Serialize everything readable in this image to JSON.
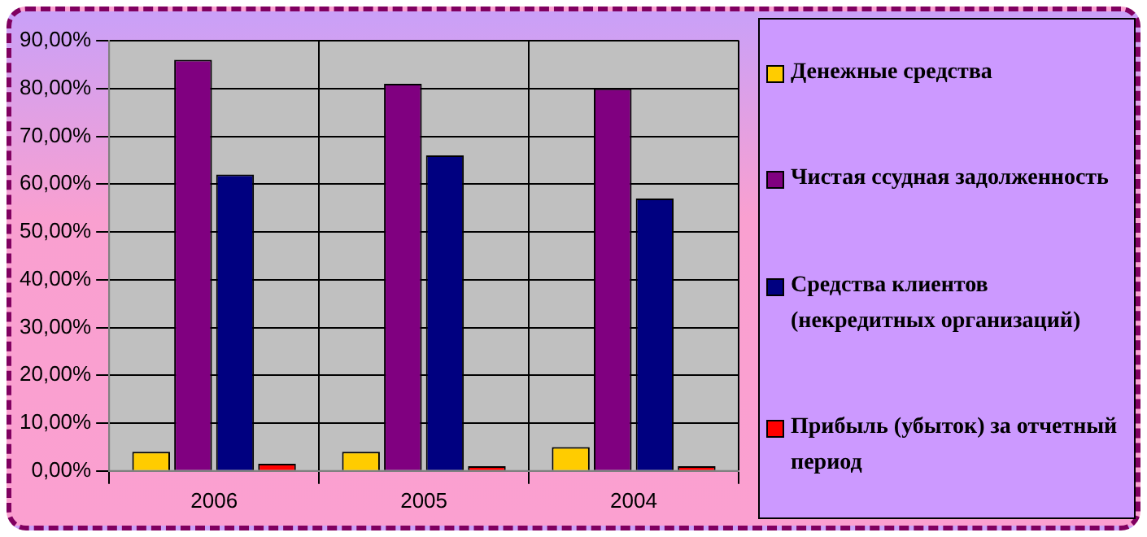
{
  "chart_data": {
    "type": "bar",
    "categories": [
      "2006",
      "2005",
      "2004"
    ],
    "series": [
      {
        "name": "Денежные средства",
        "color": "#ffcc00",
        "values": [
          4,
          4,
          5
        ]
      },
      {
        "name": "Чистая ссудная задолженность",
        "color": "#800080",
        "values": [
          86,
          81,
          80
        ]
      },
      {
        "name": "Средства клиентов (некредитных организаций)",
        "color": "#000080",
        "values": [
          62,
          66,
          57
        ]
      },
      {
        "name": "Прибыль (убыток) за отчетный период",
        "color": "#ff0000",
        "values": [
          1.5,
          1,
          1
        ]
      }
    ],
    "ylim": [
      0,
      90
    ],
    "yticks": [
      {
        "value": 0,
        "label": "0,00%"
      },
      {
        "value": 10,
        "label": "10,00%"
      },
      {
        "value": 20,
        "label": "20,00%"
      },
      {
        "value": 30,
        "label": "30,00%"
      },
      {
        "value": 40,
        "label": "40,00%"
      },
      {
        "value": 50,
        "label": "50,00%"
      },
      {
        "value": 60,
        "label": "60,00%"
      },
      {
        "value": 70,
        "label": "70,00%"
      },
      {
        "value": 80,
        "label": "80,00%"
      },
      {
        "value": 90,
        "label": "90,00%"
      }
    ],
    "grid": true,
    "legend": "right"
  }
}
